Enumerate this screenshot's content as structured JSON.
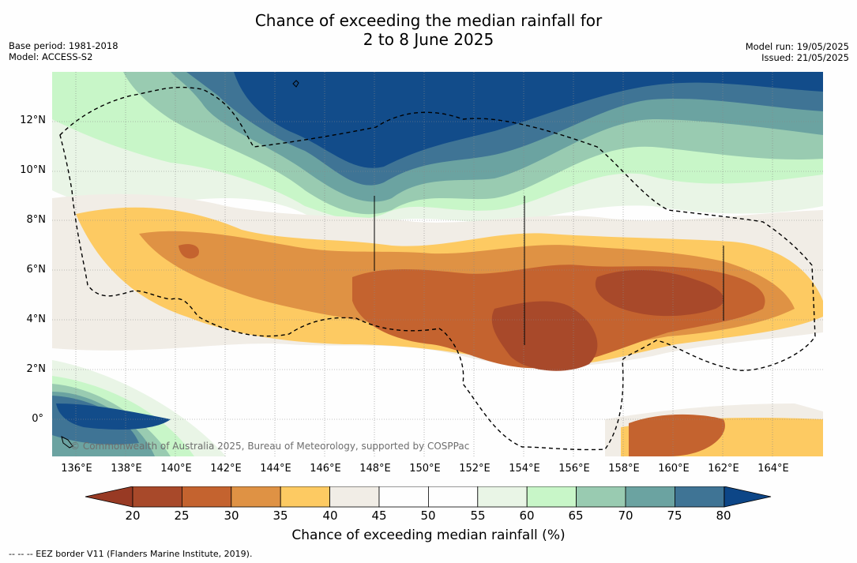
{
  "title": {
    "line1": "Chance of exceeding the median rainfall for",
    "line2": "2 to 8 June 2025"
  },
  "meta_left": {
    "base_period": "Base period: 1981-2018",
    "model": "Model: ACCESS-S2"
  },
  "meta_right": {
    "model_run": "Model run: 19/05/2025",
    "issued": "Issued: 21/05/2025"
  },
  "map": {
    "lon_range": [
      135,
      166
    ],
    "lat_range": [
      -1.5,
      14
    ],
    "x_ticks": [
      "136°E",
      "138°E",
      "140°E",
      "142°E",
      "144°E",
      "146°E",
      "148°E",
      "150°E",
      "152°E",
      "154°E",
      "156°E",
      "158°E",
      "160°E",
      "162°E",
      "164°E"
    ],
    "y_ticks": [
      "12°N",
      "10°N",
      "8°N",
      "6°N",
      "4°N",
      "2°N",
      "0°"
    ],
    "copyright": "© Commonwealth of Australia 2025, Bureau of Meteorology, supported by COSPPac"
  },
  "colorbar": {
    "title": "Chance of exceeding median rainfall (%)",
    "ticks": [
      "20",
      "25",
      "30",
      "35",
      "40",
      "45",
      "50",
      "55",
      "60",
      "65",
      "70",
      "75",
      "80"
    ],
    "colors": [
      "#a8492a",
      "#c4632f",
      "#df9244",
      "#fdca62",
      "#f1ede6",
      "#fefefe",
      "#fefefe",
      "#e9f5e6",
      "#c8f6c8",
      "#99cbb1",
      "#6ba3a1",
      "#3f7495",
      "#124c8a"
    ],
    "under_color": "#983a24",
    "over_color": "#0d4687"
  },
  "footnote": "--  --  -- EEZ border V11 (Flanders Marine Institute, 2019)."
}
